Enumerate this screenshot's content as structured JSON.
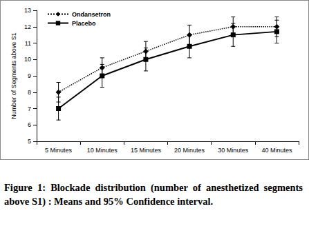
{
  "chart_data": {
    "type": "line",
    "caption": "Figure 1: Blockade distribution (number of anesthetized segments above S1) : Means and 95% Confidence interval.",
    "y_label": "Number of Segments above S1",
    "categories": [
      "5 Minutes",
      "10 Minutes",
      "15 Minutes",
      "20 Minutes",
      "30 Minutes",
      "40 Minutes"
    ],
    "series": [
      {
        "name": "Ondansetron",
        "color": "#000000",
        "marker": "diamond",
        "line_style": "dotted",
        "values": [
          8,
          9.5,
          10.5,
          11.5,
          12,
          12
        ],
        "error_low": [
          7.4,
          8.9,
          9.9,
          10.9,
          11.4,
          11.4
        ],
        "error_high": [
          8.6,
          10.1,
          11.1,
          12.1,
          12.6,
          12.6
        ]
      },
      {
        "name": "Placebo",
        "color": "#000000",
        "marker": "square",
        "line_style": "solid",
        "values": [
          7,
          9,
          10,
          10.8,
          11.5,
          11.7
        ],
        "error_low": [
          6.3,
          8.3,
          9.3,
          10.1,
          10.8,
          11.0
        ],
        "error_high": [
          7.7,
          9.7,
          10.7,
          11.5,
          12.2,
          12.4
        ]
      }
    ],
    "ylim": [
      5,
      13
    ],
    "yticks": [
      5,
      6,
      7,
      8,
      9,
      10,
      11,
      12,
      13
    ],
    "grid": false,
    "legend": "upper left"
  }
}
